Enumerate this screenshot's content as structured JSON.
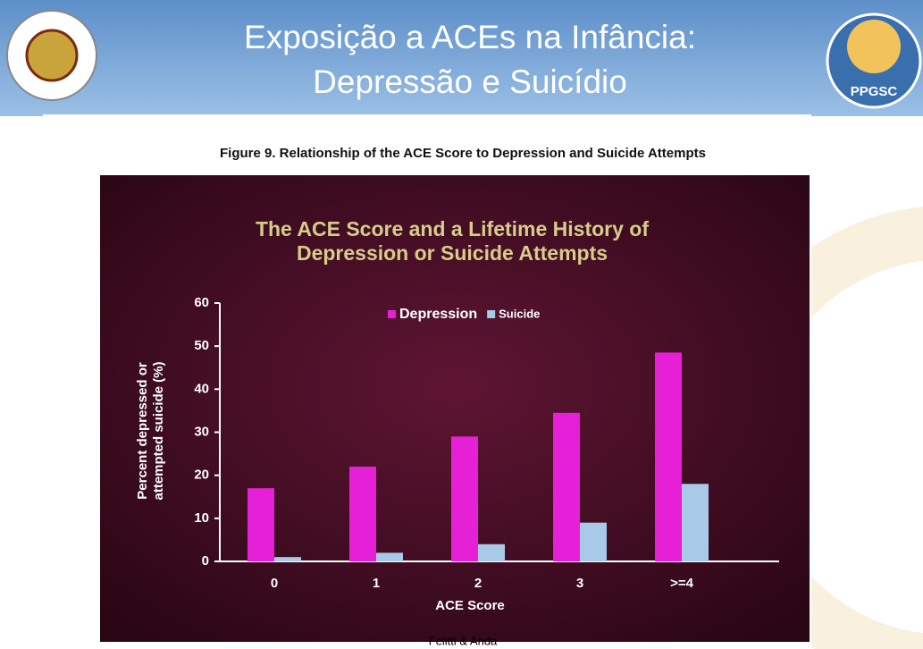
{
  "slide": {
    "title": [
      "Exposição a ACEs na Infância:",
      "Depressão e Suicídio"
    ],
    "figure_caption": "Figure 9. Relationship of the ACE Score to Depression and Suicide Attempts",
    "footer": "Felitti & Anda",
    "right_logo_text": "PPGSC"
  },
  "chart_data": {
    "type": "bar",
    "title": [
      "The ACE Score and a Lifetime History of",
      "Depression or Suicide Attempts"
    ],
    "x_label": "ACE Score",
    "y_label": [
      "Percent depressed or",
      "attempted suicide (%)"
    ],
    "categories": [
      "0",
      "1",
      "2",
      "3",
      ">=4"
    ],
    "series": [
      {
        "name": "Depression",
        "color": "#e620d6",
        "values": [
          17,
          22,
          29,
          34.5,
          48.5
        ]
      },
      {
        "name": "Suicide",
        "color": "#a9c9e9",
        "values": [
          1,
          2,
          4,
          9,
          18
        ]
      }
    ],
    "ylim": [
      0,
      60
    ],
    "yticks": [
      0,
      10,
      20,
      30,
      40,
      50,
      60
    ],
    "legend": "top"
  }
}
